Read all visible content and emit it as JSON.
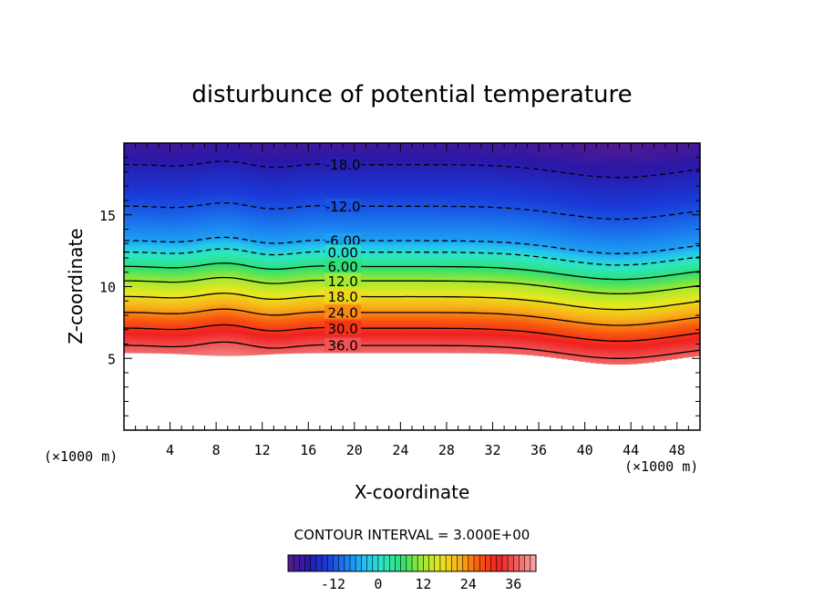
{
  "chart_data": {
    "type": "heatmap",
    "title": "disturbunce of potential temperature",
    "xlabel": "X-coordinate",
    "ylabel": "Z-coordinate",
    "x_unit_left": "(×1000 m)",
    "x_unit_right": "(×1000 m)",
    "xlim": [
      0,
      50
    ],
    "ylim": [
      0,
      20
    ],
    "x_ticks": [
      {
        "value": 4,
        "label": "4"
      },
      {
        "value": 8,
        "label": "8"
      },
      {
        "value": 12,
        "label": "12"
      },
      {
        "value": 16,
        "label": "16"
      },
      {
        "value": 20,
        "label": "20"
      },
      {
        "value": 24,
        "label": "24"
      },
      {
        "value": 28,
        "label": "28"
      },
      {
        "value": 32,
        "label": "32"
      },
      {
        "value": 36,
        "label": "36"
      },
      {
        "value": 40,
        "label": "40"
      },
      {
        "value": 44,
        "label": "44"
      },
      {
        "value": 48,
        "label": "48"
      }
    ],
    "y_ticks": [
      {
        "value": 5,
        "label": "5"
      },
      {
        "value": 10,
        "label": "10"
      },
      {
        "value": 15,
        "label": "15"
      }
    ],
    "contour_interval_text": "CONTOUR INTERVAL = 3.000E+00",
    "contour_interval": 3,
    "value_range": [
      -24,
      42
    ],
    "contour_labels": [
      {
        "x": 19,
        "z": 18.5,
        "text": "-18.0",
        "dashed": true
      },
      {
        "x": 19,
        "z": 15.6,
        "text": "-12.0",
        "dashed": true
      },
      {
        "x": 19,
        "z": 13.2,
        "text": "-6.00",
        "dashed": true
      },
      {
        "x": 19,
        "z": 12.4,
        "text": "0.00",
        "dashed": true
      },
      {
        "x": 19,
        "z": 11.4,
        "text": "6.00",
        "dashed": false
      },
      {
        "x": 19,
        "z": 10.4,
        "text": "12.0",
        "dashed": false
      },
      {
        "x": 19,
        "z": 9.3,
        "text": "18.0",
        "dashed": false
      },
      {
        "x": 19,
        "z": 8.2,
        "text": "24.0",
        "dashed": false
      },
      {
        "x": 19,
        "z": 7.1,
        "text": "30.0",
        "dashed": false
      },
      {
        "x": 19,
        "z": 5.9,
        "text": "36.0",
        "dashed": false
      }
    ],
    "colorbar": {
      "range": [
        -24,
        42
      ],
      "ticks": [
        {
          "value": -12,
          "label": "-12"
        },
        {
          "value": 0,
          "label": "0"
        },
        {
          "value": 12,
          "label": "12"
        },
        {
          "value": 24,
          "label": "24"
        },
        {
          "value": 36,
          "label": "36"
        }
      ]
    },
    "colormap": [
      "#5a1a8c",
      "#2a18a8",
      "#1a3ad8",
      "#1a7cf0",
      "#22c0f2",
      "#2ce6c0",
      "#30e070",
      "#9ee830",
      "#e8e820",
      "#f8b018",
      "#f85a10",
      "#f02020",
      "#f06060",
      "#f8a8a8"
    ]
  }
}
